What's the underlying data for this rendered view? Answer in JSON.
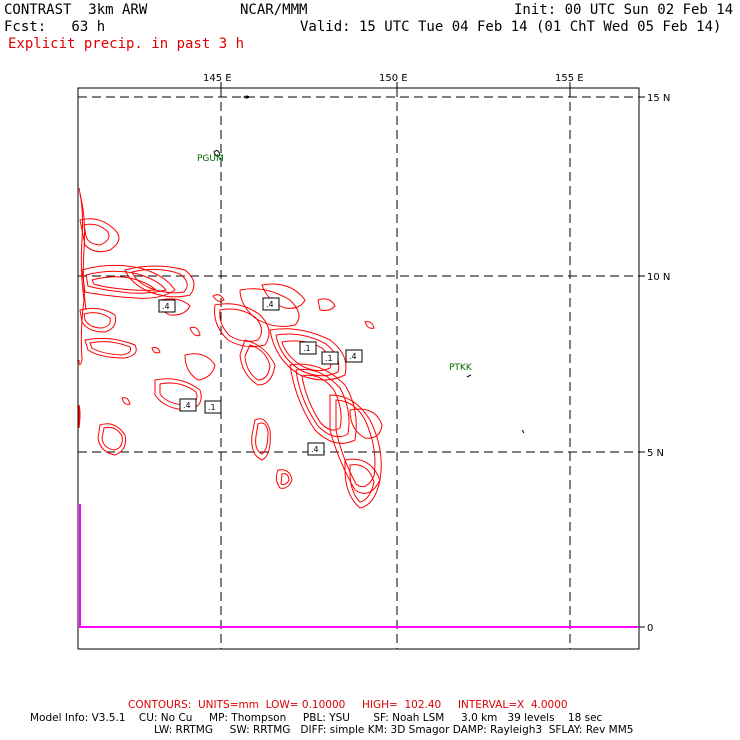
{
  "header": {
    "model": "CONTRAST  3km ARW",
    "center": "NCAR/MMM",
    "init": "Init: 00 UTC Sun 02 Feb 14",
    "fcst": "Fcst:   63 h",
    "valid": "Valid: 15 UTC Tue 04 Feb 14 (01 ChT Wed 05 Feb 14)",
    "field": "Explicit precip. in past 3 h"
  },
  "map": {
    "lon_labels": [
      "145 E",
      "150 E",
      "155 E"
    ],
    "lat_labels": [
      "15 N",
      "10 N",
      "5 N"
    ],
    "side_scale_label": "0",
    "stations": [
      "PGUM",
      "PTKK"
    ],
    "contour_labels": [
      ".4",
      ".4",
      ".1",
      ".1",
      ".4",
      ".4",
      ".1",
      ".4"
    ],
    "colors": {
      "precip_contour": "#ff0000",
      "grid": "#000000",
      "station": "#006400",
      "scale_line": "#ff00ff"
    }
  },
  "footer": {
    "contours": "CONTOURS:  UNITS=mm  LOW= 0.10000     HIGH=  102.40     INTERVAL=X  4.0000",
    "model_info_1": "Model Info: V3.5.1    CU: No Cu     MP: Thompson     PBL: YSU       SF: Noah LSM     3.0 km   39 levels    18 sec",
    "model_info_2": "LW: RRTMG     SW: RRTMG   DIFF: simple KM: 3D Smagor DAMP: Rayleigh3  SFLAY: Rev MM5"
  }
}
